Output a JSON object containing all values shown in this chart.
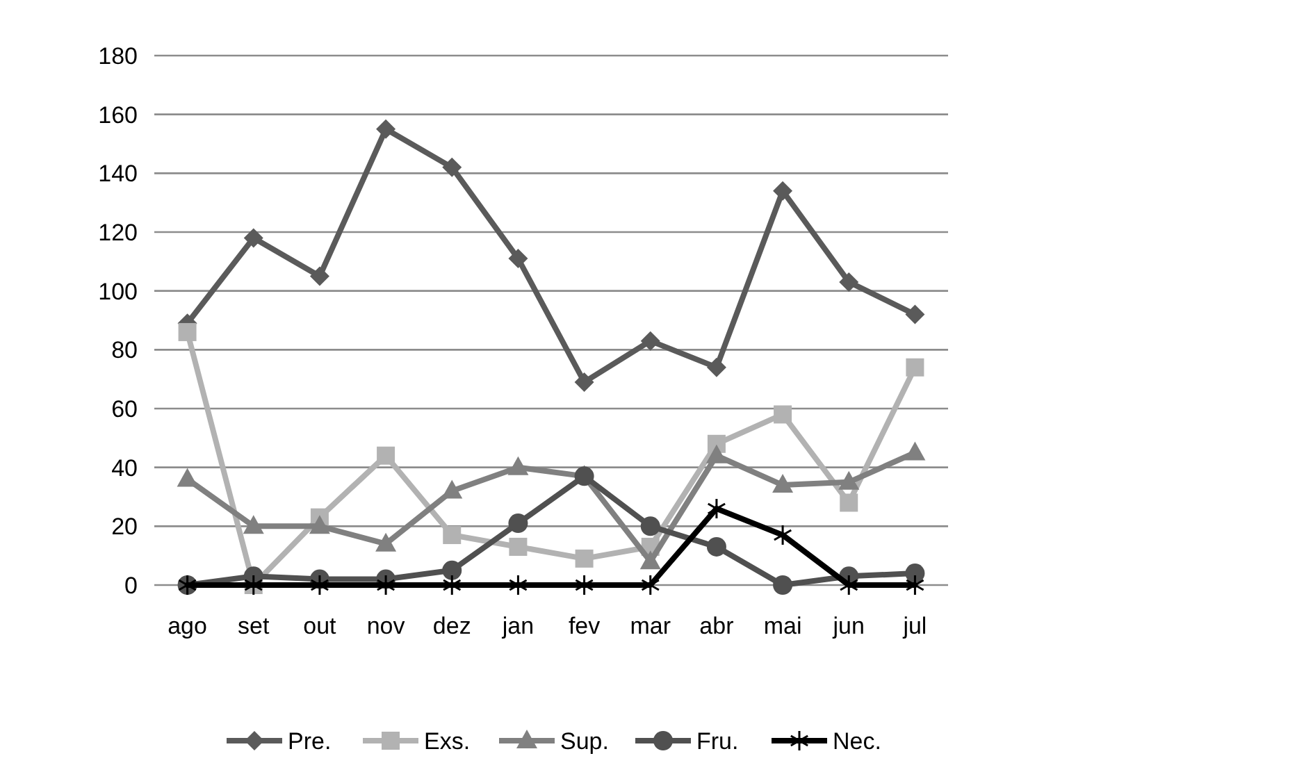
{
  "chart_data": {
    "type": "line",
    "categories": [
      "ago",
      "set",
      "out",
      "nov",
      "dez",
      "jan",
      "fev",
      "mar",
      "abr",
      "mai",
      "jun",
      "jul"
    ],
    "series": [
      {
        "name": "Pre.",
        "color": "#5a5a5a",
        "marker": "diamond",
        "values": [
          89,
          118,
          105,
          155,
          142,
          111,
          69,
          83,
          74,
          134,
          103,
          92
        ]
      },
      {
        "name": "Exs.",
        "color": "#b2b2b2",
        "marker": "square",
        "values": [
          86,
          0,
          23,
          44,
          17,
          13,
          9,
          13,
          48,
          58,
          28,
          74
        ]
      },
      {
        "name": "Sup.",
        "color": "#808080",
        "marker": "triangle",
        "values": [
          36,
          20,
          20,
          14,
          32,
          40,
          37,
          8,
          44,
          34,
          35,
          45
        ]
      },
      {
        "name": "Fru.",
        "color": "#505050",
        "marker": "circle",
        "values": [
          0,
          3,
          2,
          2,
          5,
          21,
          37,
          20,
          13,
          0,
          3,
          4
        ]
      },
      {
        "name": "Nec.",
        "color": "#000000",
        "marker": "cross",
        "values": [
          0,
          0,
          0,
          0,
          0,
          0,
          0,
          0,
          26,
          17,
          0,
          0
        ]
      }
    ],
    "ylim": [
      0,
      180
    ],
    "yticks": [
      0,
      20,
      40,
      60,
      80,
      100,
      120,
      140,
      160,
      180
    ],
    "grid": "y",
    "legend": "bottom",
    "line_style": "solid"
  }
}
